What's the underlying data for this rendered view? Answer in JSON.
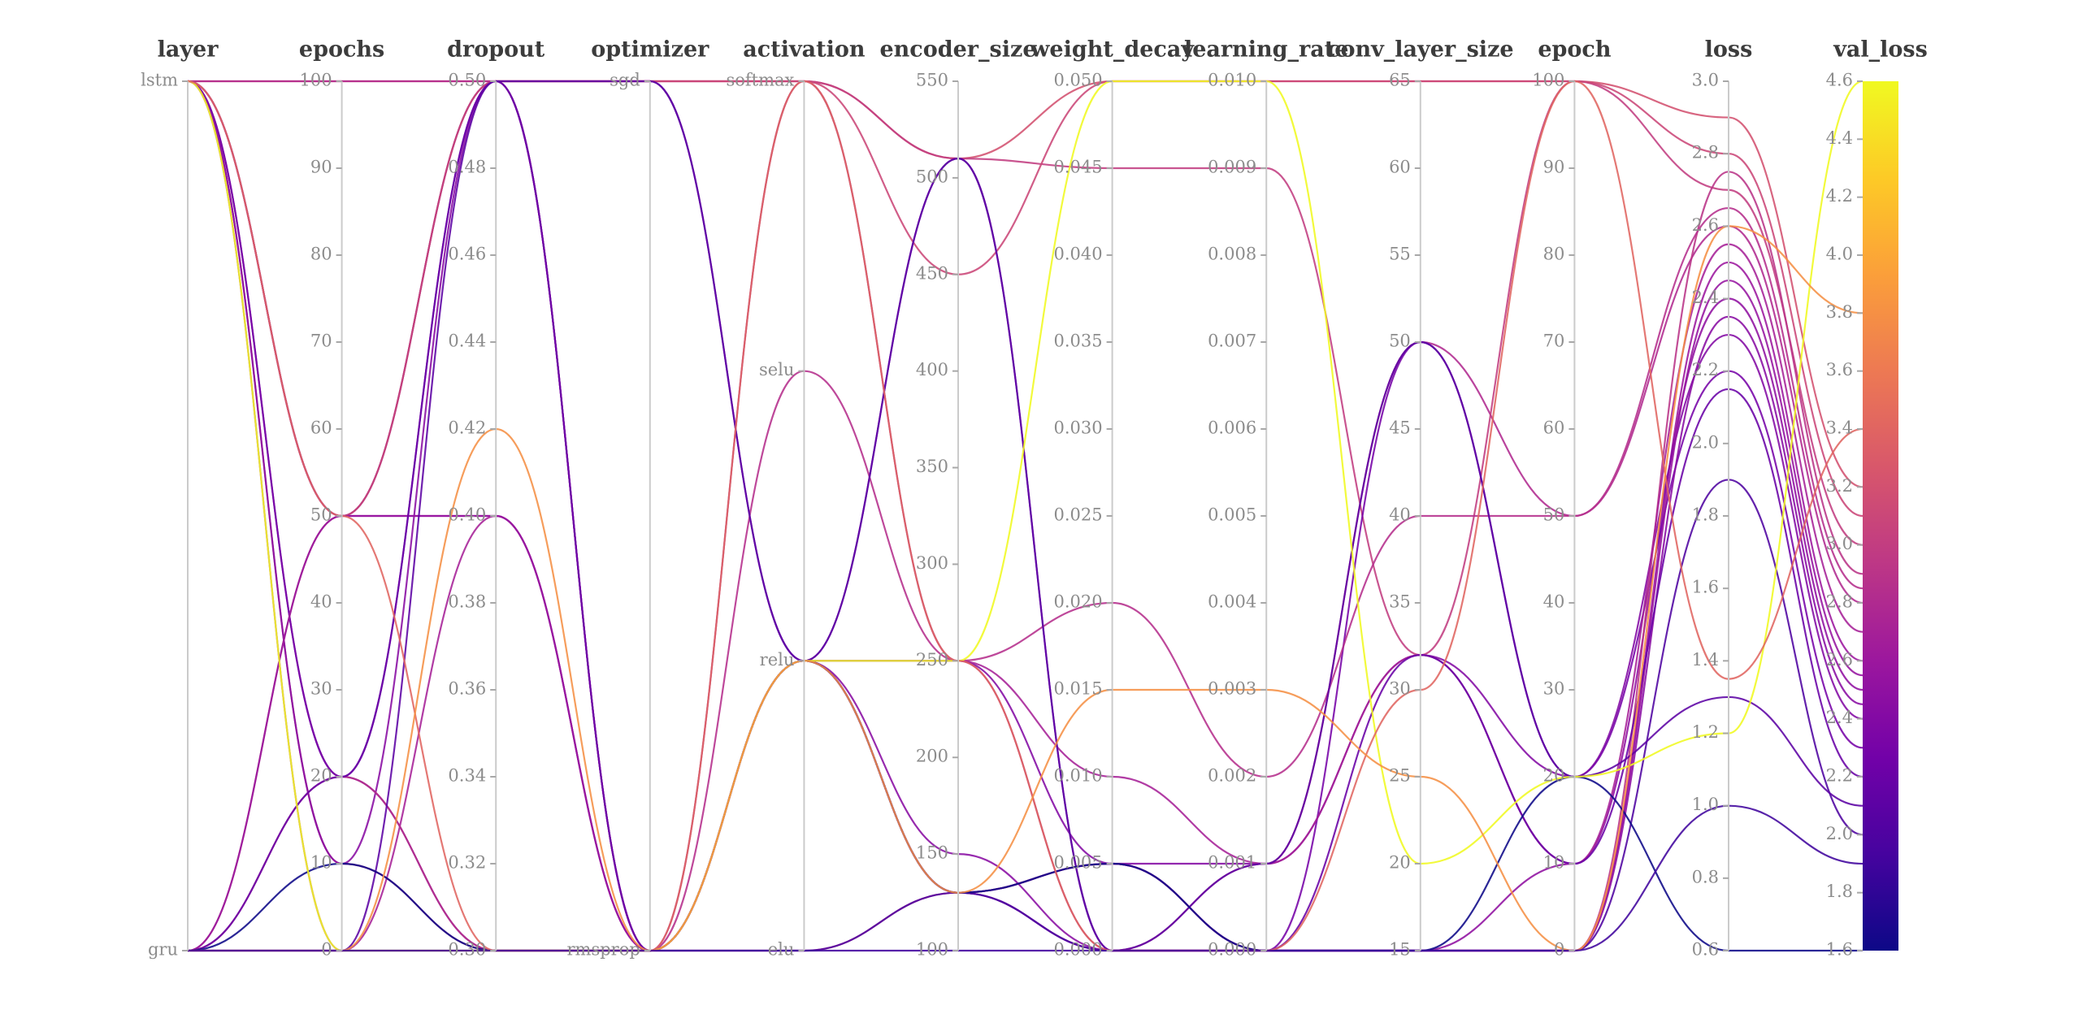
{
  "chart_data": {
    "type": "parallel-coordinates",
    "title": "",
    "axes": [
      {
        "name": "layer",
        "type": "categorical",
        "categories": [
          "gru",
          "lstm"
        ]
      },
      {
        "name": "epochs",
        "type": "linear",
        "min": 0,
        "max": 100,
        "tick_step": 10,
        "decimals": 0
      },
      {
        "name": "dropout",
        "type": "linear",
        "min": 0.3,
        "max": 0.5,
        "tick_step": 0.02,
        "decimals": 2
      },
      {
        "name": "optimizer",
        "type": "categorical",
        "categories": [
          "rmsprop",
          "sgd"
        ]
      },
      {
        "name": "activation",
        "type": "categorical",
        "categories": [
          "elu",
          "relu",
          "selu",
          "softmax"
        ]
      },
      {
        "name": "encoder_size",
        "type": "linear",
        "min": 100,
        "max": 550,
        "tick_step": 50,
        "decimals": 0
      },
      {
        "name": "weight_decay",
        "type": "linear",
        "min": 0.0,
        "max": 0.05,
        "tick_step": 0.005,
        "decimals": 3
      },
      {
        "name": "learning_rate",
        "type": "linear",
        "min": 0.0,
        "max": 0.01,
        "tick_step": 0.001,
        "decimals": 3
      },
      {
        "name": "conv_layer_size",
        "type": "linear",
        "min": 15,
        "max": 65,
        "tick_step": 5,
        "decimals": 0
      },
      {
        "name": "epoch",
        "type": "linear",
        "min": 0,
        "max": 100,
        "tick_step": 10,
        "decimals": 0
      },
      {
        "name": "loss",
        "type": "linear",
        "min": 0.6,
        "max": 3.0,
        "tick_step": 0.2,
        "decimals": 1
      }
    ],
    "colorbar": {
      "label": "val_loss",
      "min": 1.6,
      "max": 4.6,
      "tick_step": 0.2,
      "decimals": 1,
      "colormap": "plasma",
      "colormap_stops": [
        "#0d0887",
        "#46039f",
        "#7201a8",
        "#9c179e",
        "#bd3786",
        "#d8576b",
        "#ed7953",
        "#fb9f3a",
        "#fdca26",
        "#f0f921"
      ]
    },
    "runs": [
      {
        "layer": "lstm",
        "epochs": 100,
        "dropout": 0.5,
        "optimizer": "sgd",
        "activation": "softmax",
        "encoder_size": 510,
        "weight_decay": 0.05,
        "learning_rate": 0.01,
        "conv_layer_size": 65,
        "epoch": 100,
        "loss": 2.9,
        "val_loss": 3.2
      },
      {
        "layer": "lstm",
        "epochs": 100,
        "dropout": 0.5,
        "optimizer": "rmsprop",
        "activation": "relu",
        "encoder_size": 250,
        "weight_decay": 0.0,
        "learning_rate": 0.001,
        "conv_layer_size": 50,
        "epoch": 50,
        "loss": 2.6,
        "val_loss": 2.8
      },
      {
        "layer": "lstm",
        "epochs": 50,
        "dropout": 0.5,
        "optimizer": "sgd",
        "activation": "softmax",
        "encoder_size": 510,
        "weight_decay": 0.045,
        "learning_rate": 0.009,
        "conv_layer_size": 32,
        "epoch": 100,
        "loss": 2.7,
        "val_loss": 3.0
      },
      {
        "layer": "lstm",
        "epochs": 50,
        "dropout": 0.4,
        "optimizer": "rmsprop",
        "activation": "relu",
        "encoder_size": 130,
        "weight_decay": 0.005,
        "learning_rate": 0.0,
        "conv_layer_size": 15,
        "epoch": 0,
        "loss": 2.5,
        "val_loss": 2.6
      },
      {
        "layer": "lstm",
        "epochs": 50,
        "dropout": 0.5,
        "optimizer": "rmsprop",
        "activation": "relu",
        "encoder_size": 130,
        "weight_decay": 0.0,
        "learning_rate": 0.0,
        "conv_layer_size": 15,
        "epoch": 10,
        "loss": 2.4,
        "val_loss": 2.5
      },
      {
        "layer": "lstm",
        "epochs": 20,
        "dropout": 0.3,
        "optimizer": "rmsprop",
        "activation": "relu",
        "encoder_size": 250,
        "weight_decay": 0.005,
        "learning_rate": 0.001,
        "conv_layer_size": 32,
        "epoch": 20,
        "loss": 2.3,
        "val_loss": 2.4
      },
      {
        "layer": "lstm",
        "epochs": 20,
        "dropout": 0.5,
        "optimizer": "sgd",
        "activation": "relu",
        "encoder_size": 510,
        "weight_decay": 0.0,
        "learning_rate": 0.0,
        "conv_layer_size": 50,
        "epoch": 20,
        "loss": 2.2,
        "val_loss": 2.3
      },
      {
        "layer": "lstm",
        "epochs": 10,
        "dropout": 0.3,
        "optimizer": "rmsprop",
        "activation": "elu",
        "encoder_size": 130,
        "weight_decay": 0.005,
        "learning_rate": 0.0,
        "conv_layer_size": 15,
        "epoch": 0,
        "loss": 2.75,
        "val_loss": 2.9
      },
      {
        "layer": "lstm",
        "epochs": 0,
        "dropout": 0.4,
        "optimizer": "rmsprop",
        "activation": "softmax",
        "encoder_size": 250,
        "weight_decay": 0.01,
        "learning_rate": 0.001,
        "conv_layer_size": 32,
        "epoch": 10,
        "loss": 2.55,
        "val_loss": 2.7
      },
      {
        "layer": "lstm",
        "epochs": 10,
        "dropout": 0.5,
        "optimizer": "rmsprop",
        "activation": "relu",
        "encoder_size": 150,
        "weight_decay": 0.0,
        "learning_rate": 0.0,
        "conv_layer_size": 15,
        "epoch": 0,
        "loss": 2.35,
        "val_loss": 2.45
      },
      {
        "layer": "gru",
        "epochs": 50,
        "dropout": 0.5,
        "optimizer": "sgd",
        "activation": "softmax",
        "encoder_size": 450,
        "weight_decay": 0.05,
        "learning_rate": 0.01,
        "conv_layer_size": 65,
        "epoch": 100,
        "loss": 2.8,
        "val_loss": 3.1
      },
      {
        "layer": "gru",
        "epochs": 50,
        "dropout": 0.4,
        "optimizer": "rmsprop",
        "activation": "relu",
        "encoder_size": 130,
        "weight_decay": 0.005,
        "learning_rate": 0.0,
        "conv_layer_size": 15,
        "epoch": 0,
        "loss": 2.45,
        "val_loss": 2.55
      },
      {
        "layer": "gru",
        "epochs": 20,
        "dropout": 0.3,
        "optimizer": "rmsprop",
        "activation": "selu",
        "encoder_size": 250,
        "weight_decay": 0.02,
        "learning_rate": 0.002,
        "conv_layer_size": 40,
        "epoch": 50,
        "loss": 2.65,
        "val_loss": 2.85
      },
      {
        "layer": "gru",
        "epochs": 20,
        "dropout": 0.5,
        "optimizer": "rmsprop",
        "activation": "relu",
        "encoder_size": 130,
        "weight_decay": 0.0,
        "learning_rate": 0.0,
        "conv_layer_size": 32,
        "epoch": 10,
        "loss": 2.15,
        "val_loss": 2.2
      },
      {
        "layer": "gru",
        "epochs": 0,
        "dropout": 0.3,
        "optimizer": "rmsprop",
        "activation": "elu",
        "encoder_size": 130,
        "weight_decay": 0.0,
        "learning_rate": 0.0,
        "conv_layer_size": 15,
        "epoch": 0,
        "loss": 1.9,
        "val_loss": 2.0
      },
      {
        "layer": "gru",
        "epochs": 0,
        "dropout": 0.5,
        "optimizer": "sgd",
        "activation": "relu",
        "encoder_size": 510,
        "weight_decay": 0.0,
        "learning_rate": 0.001,
        "conv_layer_size": 50,
        "epoch": 20,
        "loss": 1.3,
        "val_loss": 2.1
      },
      {
        "layer": "gru",
        "epochs": 10,
        "dropout": 0.3,
        "optimizer": "rmsprop",
        "activation": "relu",
        "encoder_size": 130,
        "weight_decay": 0.005,
        "learning_rate": 0.0,
        "conv_layer_size": 15,
        "epoch": 20,
        "loss": 0.6,
        "val_loss": 1.6
      },
      {
        "layer": "lstm",
        "epochs": 0,
        "dropout": 0.3,
        "optimizer": "rmsprop",
        "activation": "relu",
        "encoder_size": 250,
        "weight_decay": 0.05,
        "learning_rate": 0.01,
        "conv_layer_size": 20,
        "epoch": 20,
        "loss": 1.2,
        "val_loss": 4.6
      },
      {
        "layer": "lstm",
        "epochs": 50,
        "dropout": 0.3,
        "optimizer": "rmsprop",
        "activation": "softmax",
        "encoder_size": 250,
        "weight_decay": 0.0,
        "learning_rate": 0.0,
        "conv_layer_size": 30,
        "epoch": 100,
        "loss": 1.35,
        "val_loss": 3.4
      },
      {
        "layer": "gru",
        "epochs": 0,
        "dropout": 0.42,
        "optimizer": "rmsprop",
        "activation": "relu",
        "encoder_size": 130,
        "weight_decay": 0.015,
        "learning_rate": 0.003,
        "conv_layer_size": 25,
        "epoch": 0,
        "loss": 2.6,
        "val_loss": 3.8
      },
      {
        "layer": "gru",
        "epochs": 0,
        "dropout": 0.3,
        "optimizer": "rmsprop",
        "activation": "elu",
        "encoder_size": 100,
        "weight_decay": 0.0,
        "learning_rate": 0.0,
        "conv_layer_size": 15,
        "epoch": 0,
        "loss": 1.0,
        "val_loss": 1.9
      }
    ],
    "style": {
      "background": "#ffffff",
      "axis_line_color": "#cbcbcb",
      "tick_mark_color": "#a8a8a8",
      "tick_label_color": "#8c8c8c",
      "title_color": "#3c3c3c"
    }
  }
}
